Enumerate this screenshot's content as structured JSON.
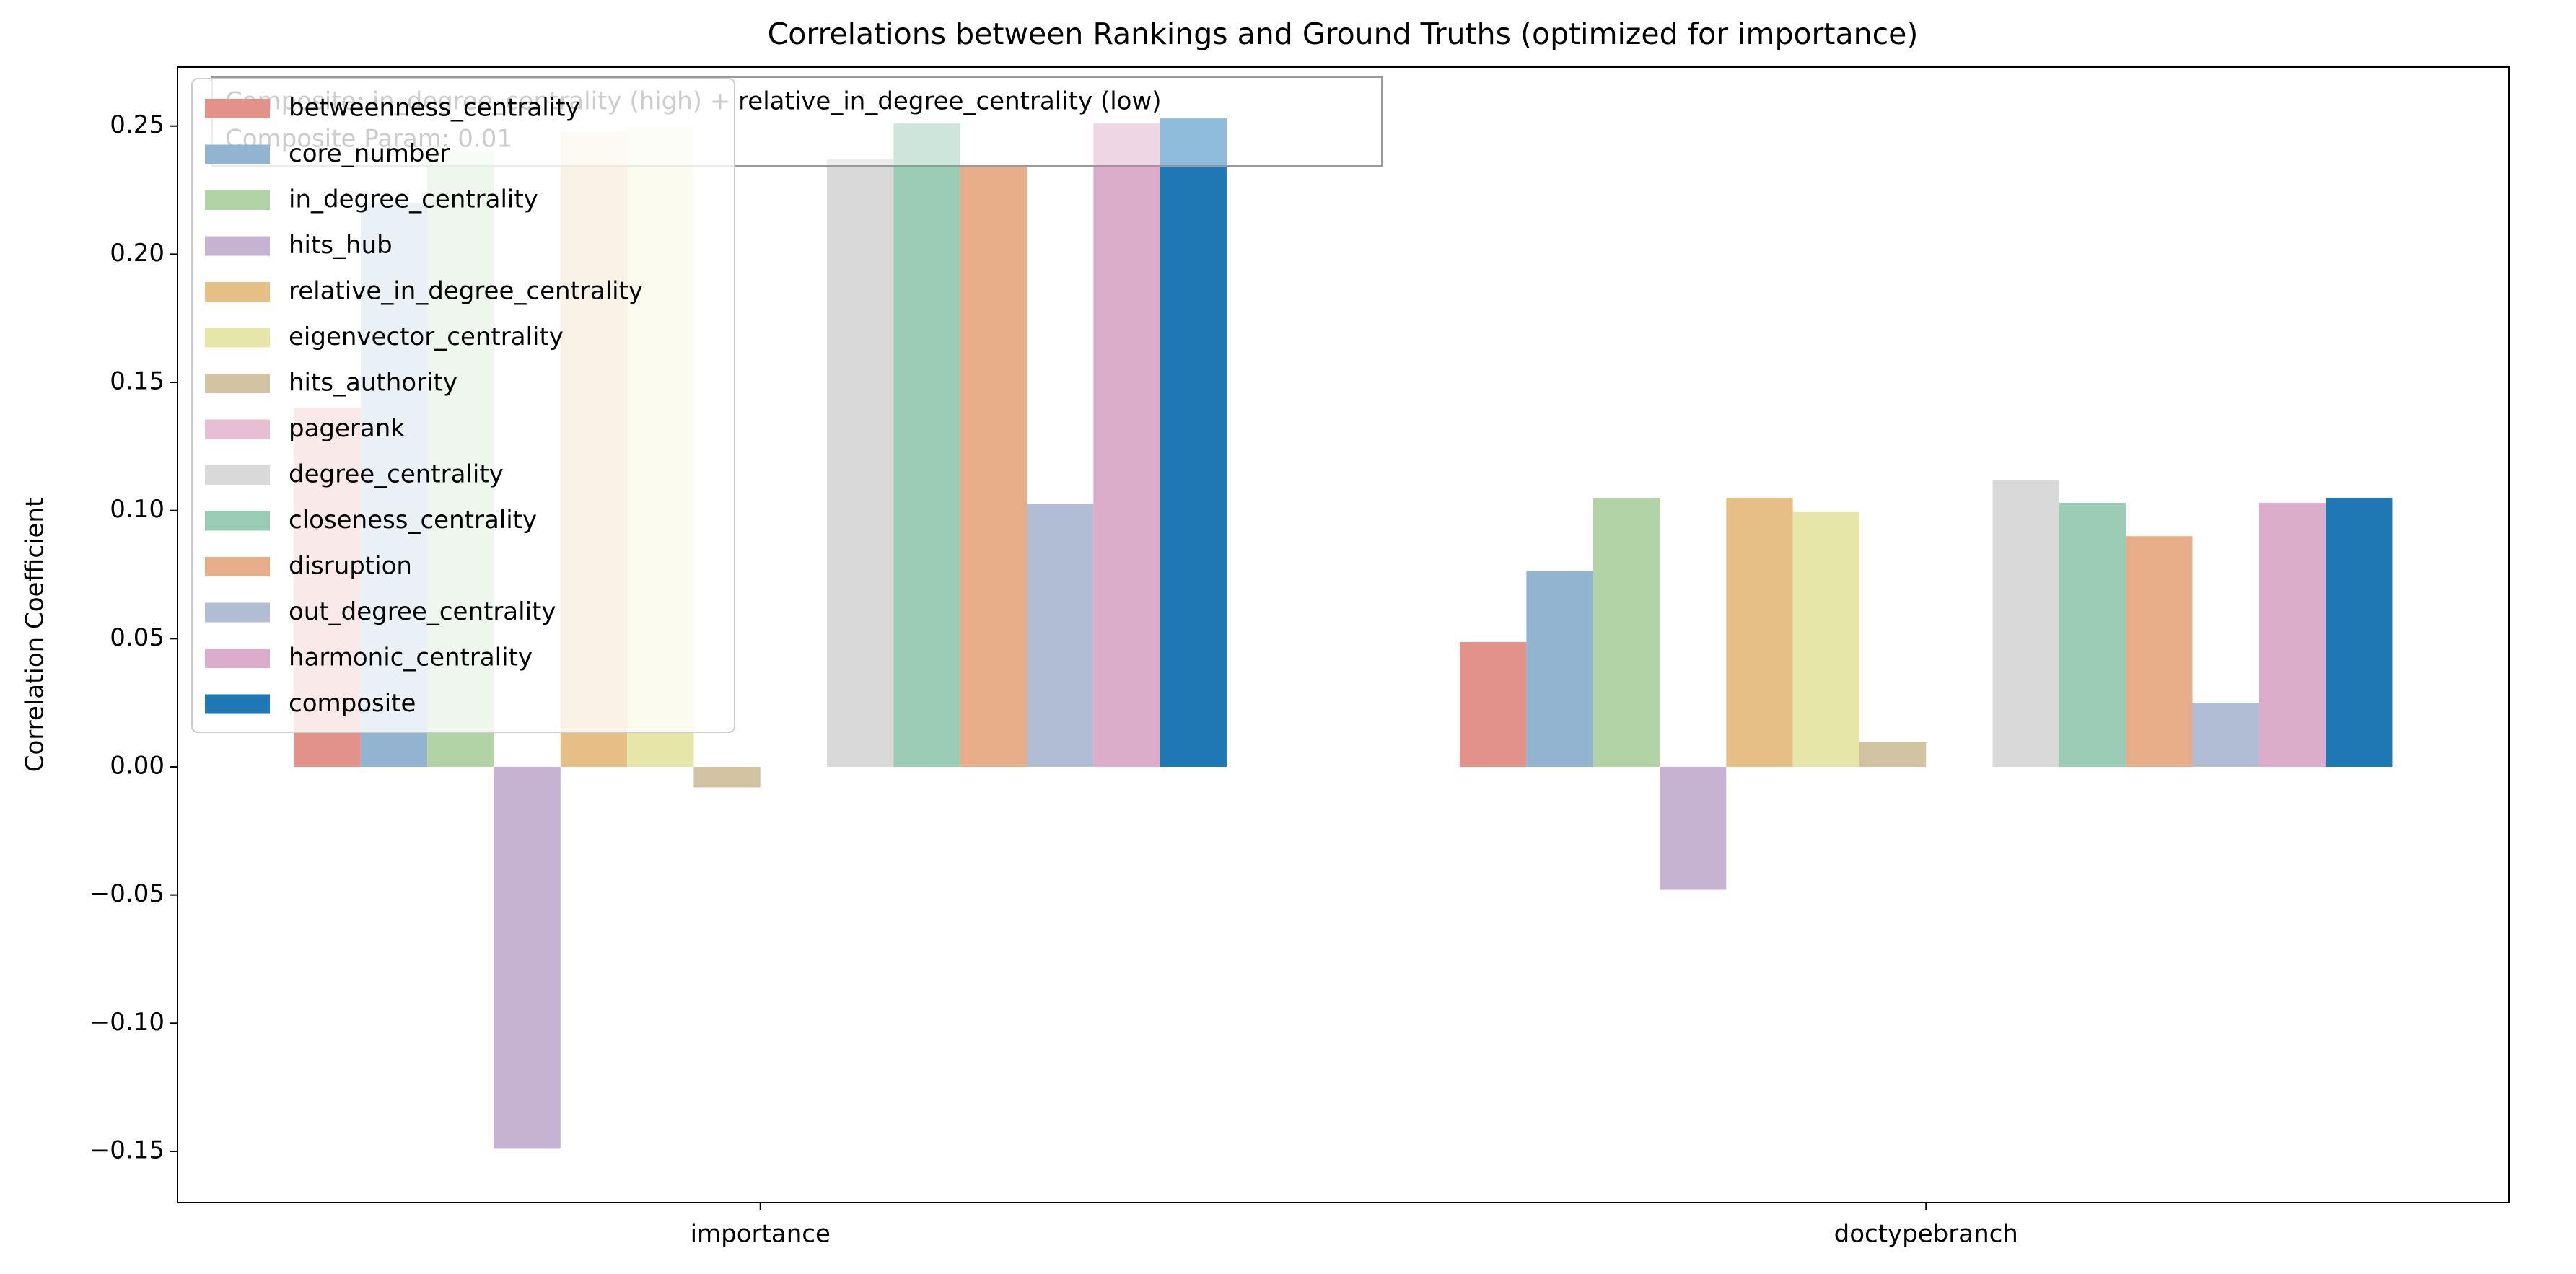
{
  "chart_data": {
    "type": "bar",
    "title": "Correlations between Rankings and Ground Truths (optimized for importance)",
    "ylabel": "Correlation Coefficient",
    "annotation": [
      "Composite: in_degree_centrality (high) + relative_in_degree_centrality (low)",
      "Composite Param: 0.01"
    ],
    "categories": [
      "importance",
      "doctypebranch"
    ],
    "ylim": [
      -0.17,
      0.273
    ],
    "yticks": [
      {
        "value": -0.15,
        "label": "−0.15"
      },
      {
        "value": -0.1,
        "label": "−0.10"
      },
      {
        "value": -0.05,
        "label": "−0.05"
      },
      {
        "value": 0,
        "label": "0.00"
      },
      0.05,
      {
        "value": 0.1,
        "label": "0.10"
      },
      0.15,
      {
        "value": 0.2,
        "label": "0.20"
      },
      0.25
    ],
    "legend": "upper left",
    "series": [
      {
        "name": "betweenness_centrality",
        "color": "#e1928a",
        "values": [
          0.14,
          0.0487
        ]
      },
      {
        "name": "core_number",
        "color": "#93b4d1",
        "values": [
          0.22,
          0.0763
        ]
      },
      {
        "name": "in_degree_centrality",
        "color": "#b1d3a6",
        "values": [
          0.24,
          0.105
        ]
      },
      {
        "name": "hits_hub",
        "color": "#c6b2d1",
        "values": [
          -0.149,
          -0.048
        ]
      },
      {
        "name": "relative_in_degree_centrality",
        "color": "#e6bf86",
        "values": [
          0.248,
          0.105
        ]
      },
      {
        "name": "eigenvector_centrality",
        "color": "#e7e6a9",
        "values": [
          0.25,
          0.0994
        ]
      },
      {
        "name": "hits_authority",
        "color": "#d1c2a2",
        "values": [
          -0.008,
          0.0096
        ]
      },
      {
        "name": "pagerank",
        "color": "#e8bed5",
        "values": [
          null,
          null
        ]
      },
      {
        "name": "degree_centrality",
        "color": "#d9d9d9",
        "values": [
          0.237,
          0.112
        ]
      },
      {
        "name": "closeness_centrality",
        "color": "#9acbb4",
        "values": [
          0.251,
          0.103
        ]
      },
      {
        "name": "disruption",
        "color": "#e5ae89",
        "values": [
          0.234,
          0.09
        ]
      },
      {
        "name": "out_degree_centrality",
        "color": "#b0bdd3",
        "values": [
          0.1026,
          0.025
        ]
      },
      {
        "name": "harmonic_centrality",
        "color": "#dcadcb",
        "values": [
          0.251,
          0.103
        ]
      },
      {
        "name": "composite",
        "color": "#1f77b4",
        "values": [
          0.253,
          0.105
        ]
      }
    ]
  }
}
